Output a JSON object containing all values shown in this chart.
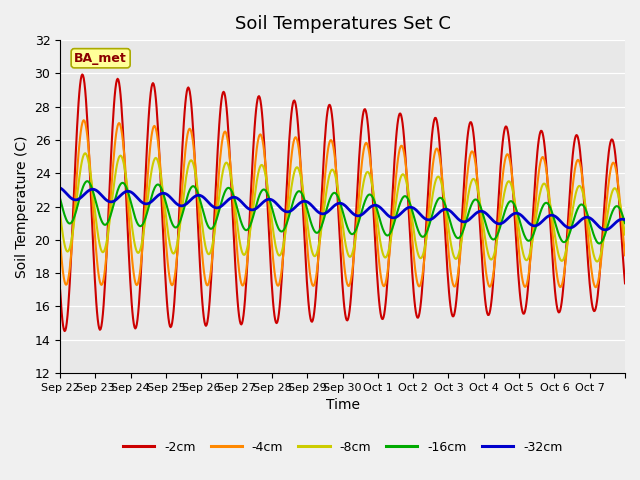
{
  "title": "Soil Temperatures Set C",
  "xlabel": "Time",
  "ylabel": "Soil Temperature (C)",
  "ylim": [
    12,
    32
  ],
  "fig_bg": "#f0f0f0",
  "plot_bg": "#e8e8e8",
  "label_box_text": "BA_met",
  "legend_labels": [
    "-2cm",
    "-4cm",
    "-8cm",
    "-16cm",
    "-32cm"
  ],
  "line_colors": [
    "#cc0000",
    "#ff8800",
    "#cccc00",
    "#00aa00",
    "#0000cc"
  ],
  "line_widths": [
    1.5,
    1.5,
    1.5,
    1.5,
    2.0
  ],
  "tick_labels": [
    "Sep 22",
    "Sep 23",
    "Sep 24",
    "Sep 25",
    "Sep 26",
    "Sep 27",
    "Sep 28",
    "Sep 29",
    "Sep 30",
    "Oct 1",
    "Oct 2",
    "Oct 3",
    "Oct 4",
    "Oct 5",
    "Oct 6",
    "Oct 7"
  ],
  "yticks": [
    12,
    14,
    16,
    18,
    20,
    22,
    24,
    26,
    28,
    30,
    32
  ]
}
